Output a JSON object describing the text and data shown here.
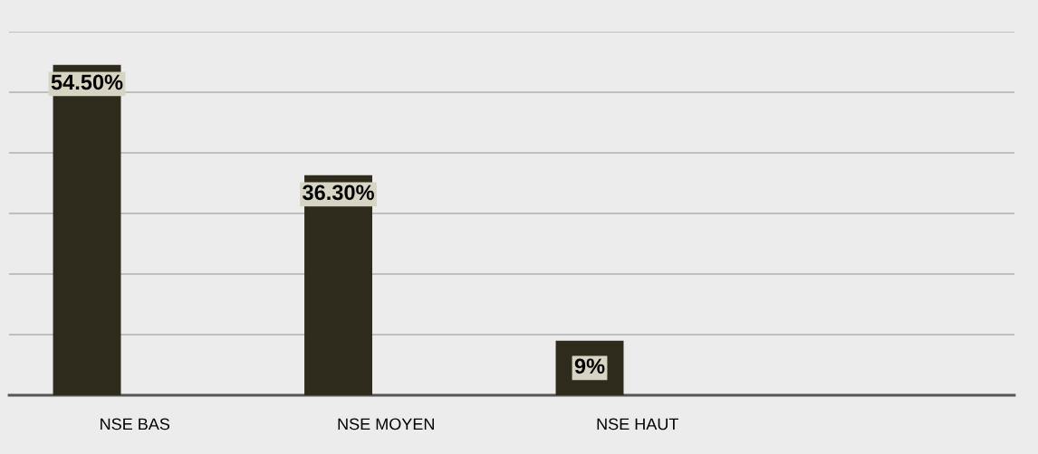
{
  "chart_data": {
    "type": "bar",
    "categories": [
      "NSE BAS",
      "NSE MOYEN",
      "NSE HAUT",
      null
    ],
    "values": [
      54.5,
      36.3,
      9,
      null
    ],
    "value_labels": [
      "54.50%",
      "36.30%",
      "9%",
      null
    ],
    "color": "#2e2a1c",
    "ylim": [
      0,
      60
    ],
    "yticks": [
      {
        "value": 0,
        "label": null
      },
      {
        "value": 10,
        "label": null
      },
      {
        "value": 20,
        "label": null
      },
      {
        "value": 30,
        "label": null
      },
      {
        "value": 40,
        "label": null
      },
      {
        "value": 50,
        "label": null
      },
      {
        "value": 60,
        "label": null
      }
    ],
    "grid": "y",
    "tick_labels": "x"
  }
}
